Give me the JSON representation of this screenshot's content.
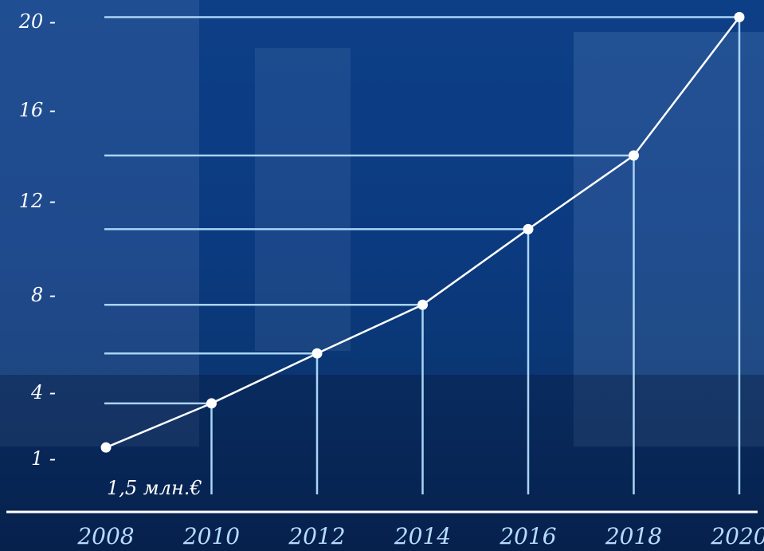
{
  "chart_data": {
    "type": "line",
    "x": [
      2008,
      2010,
      2012,
      2014,
      2016,
      2018,
      2020
    ],
    "xtick_labels": [
      "2008",
      "2010",
      "2012",
      "2014",
      "2016",
      "2018",
      "2020"
    ],
    "values": [
      1.5,
      3.5,
      5.6,
      7.6,
      10.8,
      14.0,
      20.2
    ],
    "ytick_values": [
      1,
      4,
      8,
      12,
      16,
      20
    ],
    "ytick_labels": [
      "1 -",
      "4 -",
      "8 -",
      "12 -",
      "16 -",
      "20 -"
    ],
    "annotation": "1,5 млн.€",
    "xlim": [
      2008,
      2020
    ],
    "ylim": [
      0,
      21
    ],
    "grid": false,
    "legend": "none",
    "colors": {
      "line": "#ffffff",
      "point": "#ffffff",
      "guides": "#a9d4f5",
      "axis": "#ffffff",
      "xtick_labels": "#b7dcff"
    }
  }
}
